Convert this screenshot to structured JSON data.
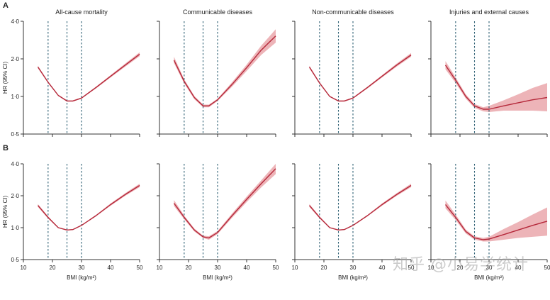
{
  "watermark": "知乎 @小易学统计",
  "colors": {
    "curve": "#b5283a",
    "band": "#e8a1a6",
    "ref_line": "#2d5f73",
    "axis": "#333333"
  },
  "chart_data": {
    "type": "line",
    "shared": {
      "x_axis_label": "BMI (kg/m²)",
      "y_axis_label": "HR (95% CI)",
      "x_ticks": [
        10,
        20,
        30,
        40,
        50
      ],
      "xlim": [
        10,
        50
      ],
      "y_ticks": [
        0.5,
        1.0,
        2.0,
        4.0
      ],
      "y_tick_labels": [
        "0·5",
        "1·0",
        "2·0",
        "4·0"
      ],
      "ylim": [
        0.5,
        4.0
      ],
      "y_scale": "log",
      "reference_lines_x": [
        18.5,
        25,
        30
      ],
      "grid": false
    },
    "rows": [
      {
        "label": "A",
        "panels": [
          {
            "title": "All-cause mortality",
            "x": [
              15,
              18.5,
              22,
              25,
              27,
              30,
              35,
              40,
              45,
              50
            ],
            "hr": [
              1.72,
              1.3,
              1.02,
              0.92,
              0.92,
              0.97,
              1.18,
              1.45,
              1.78,
              2.18
            ],
            "lower": [
              1.68,
              1.28,
              1.01,
              0.91,
              0.91,
              0.96,
              1.16,
              1.42,
              1.73,
              2.1
            ],
            "upper": [
              1.76,
              1.32,
              1.03,
              0.93,
              0.93,
              0.98,
              1.2,
              1.48,
              1.83,
              2.26
            ]
          },
          {
            "title": "Communicable diseases",
            "x": [
              15,
              18.5,
              22,
              25,
              27,
              30,
              35,
              40,
              45,
              50
            ],
            "hr": [
              1.95,
              1.32,
              0.98,
              0.84,
              0.84,
              0.94,
              1.25,
              1.7,
              2.35,
              3.05
            ],
            "lower": [
              1.85,
              1.27,
              0.95,
              0.82,
              0.82,
              0.92,
              1.2,
              1.6,
              2.15,
              2.7
            ],
            "upper": [
              2.08,
              1.37,
              1.01,
              0.86,
              0.86,
              0.96,
              1.3,
              1.8,
              2.55,
              3.45
            ]
          },
          {
            "title": "Non-communicable diseases",
            "x": [
              15,
              18.5,
              22,
              25,
              27,
              30,
              35,
              40,
              45,
              50
            ],
            "hr": [
              1.72,
              1.28,
              1.0,
              0.92,
              0.92,
              0.97,
              1.18,
              1.45,
              1.78,
              2.15
            ],
            "lower": [
              1.68,
              1.26,
              0.99,
              0.91,
              0.91,
              0.96,
              1.16,
              1.42,
              1.73,
              2.08
            ],
            "upper": [
              1.76,
              1.3,
              1.01,
              0.93,
              0.93,
              0.98,
              1.2,
              1.48,
              1.83,
              2.23
            ]
          },
          {
            "title": "Injuries and external causes",
            "x": [
              15,
              18.5,
              22,
              25,
              28,
              30,
              35,
              40,
              45,
              50
            ],
            "hr": [
              1.78,
              1.35,
              1.0,
              0.84,
              0.79,
              0.79,
              0.84,
              0.89,
              0.94,
              0.98
            ],
            "lower": [
              1.65,
              1.28,
              0.96,
              0.81,
              0.76,
              0.75,
              0.77,
              0.77,
              0.77,
              0.76
            ],
            "upper": [
              1.92,
              1.42,
              1.04,
              0.87,
              0.82,
              0.84,
              0.93,
              1.04,
              1.17,
              1.28
            ]
          }
        ]
      },
      {
        "label": "B",
        "panels": [
          {
            "title": "",
            "x": [
              15,
              18.5,
              22,
              25,
              27,
              30,
              35,
              40,
              45,
              50
            ],
            "hr": [
              1.62,
              1.25,
              1.0,
              0.95,
              0.96,
              1.05,
              1.3,
              1.65,
              2.05,
              2.5
            ],
            "lower": [
              1.57,
              1.22,
              0.99,
              0.94,
              0.95,
              1.04,
              1.28,
              1.61,
              1.99,
              2.41
            ],
            "upper": [
              1.67,
              1.28,
              1.01,
              0.96,
              0.97,
              1.06,
              1.32,
              1.69,
              2.11,
              2.6
            ]
          },
          {
            "title": "",
            "x": [
              15,
              18.5,
              22,
              25,
              27,
              30,
              35,
              40,
              45,
              50
            ],
            "hr": [
              1.7,
              1.25,
              0.95,
              0.82,
              0.8,
              0.9,
              1.3,
              1.85,
              2.6,
              3.6
            ],
            "lower": [
              1.6,
              1.2,
              0.92,
              0.8,
              0.77,
              0.87,
              1.24,
              1.74,
              2.4,
              3.2
            ],
            "upper": [
              1.82,
              1.3,
              0.98,
              0.84,
              0.83,
              0.93,
              1.36,
              1.96,
              2.8,
              4.0
            ]
          },
          {
            "title": "",
            "x": [
              15,
              18.5,
              22,
              25,
              27,
              30,
              35,
              40,
              45,
              50
            ],
            "hr": [
              1.62,
              1.25,
              1.0,
              0.95,
              0.96,
              1.05,
              1.3,
              1.65,
              2.05,
              2.5
            ],
            "lower": [
              1.57,
              1.22,
              0.99,
              0.94,
              0.95,
              1.04,
              1.28,
              1.61,
              1.99,
              2.41
            ],
            "upper": [
              1.67,
              1.28,
              1.01,
              0.96,
              0.97,
              1.06,
              1.32,
              1.69,
              2.11,
              2.6
            ]
          },
          {
            "title": "",
            "x": [
              15,
              18.5,
              22,
              25,
              28,
              30,
              35,
              40,
              45,
              50
            ],
            "hr": [
              1.65,
              1.25,
              0.92,
              0.8,
              0.77,
              0.78,
              0.86,
              0.95,
              1.05,
              1.15
            ],
            "lower": [
              1.52,
              1.18,
              0.88,
              0.77,
              0.74,
              0.74,
              0.77,
              0.8,
              0.82,
              0.84
            ],
            "upper": [
              1.8,
              1.33,
              0.96,
              0.83,
              0.8,
              0.82,
              0.97,
              1.13,
              1.33,
              1.55
            ]
          }
        ]
      }
    ]
  }
}
